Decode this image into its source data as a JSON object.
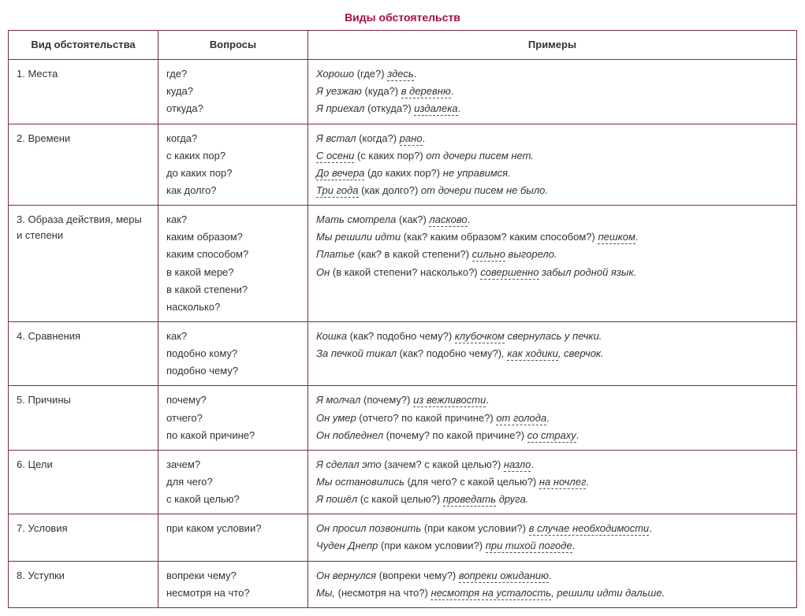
{
  "title": "Виды обстоятельств",
  "colors": {
    "border": "#7a2a44",
    "title": "#a6123a",
    "text": "#333"
  },
  "columns": [
    "Вид обстоятельства",
    "Вопросы",
    "Примеры"
  ],
  "col_widths_pct": [
    19,
    19,
    62
  ],
  "rows": [
    {
      "type": "1. Места",
      "questions": [
        "где?",
        "куда?",
        "откуда?"
      ],
      "examples": [
        [
          {
            "t": "Хорошо ",
            "i": true
          },
          {
            "t": "(где?) ",
            "i": false
          },
          {
            "t": "здесь",
            "i": true,
            "u": true
          },
          {
            "t": ".",
            "i": false
          }
        ],
        [
          {
            "t": "Я уезжаю ",
            "i": true
          },
          {
            "t": "(куда?) ",
            "i": false
          },
          {
            "t": "в деревню",
            "i": true,
            "u": true
          },
          {
            "t": ".",
            "i": false
          }
        ],
        [
          {
            "t": "Я приехал ",
            "i": true
          },
          {
            "t": "(откуда?) ",
            "i": false
          },
          {
            "t": "издалека",
            "i": true,
            "u": true
          },
          {
            "t": ".",
            "i": false
          }
        ]
      ]
    },
    {
      "type": "2. Времени",
      "questions": [
        "когда?",
        "с каких пор?",
        "до каких пор?",
        "как долго?"
      ],
      "examples": [
        [
          {
            "t": "Я встал ",
            "i": true
          },
          {
            "t": "(когда?) ",
            "i": false
          },
          {
            "t": "рано",
            "i": true,
            "u": true
          },
          {
            "t": ".",
            "i": false
          }
        ],
        [
          {
            "t": "С осени",
            "i": true,
            "u": true
          },
          {
            "t": " (с каких пор?) ",
            "i": false
          },
          {
            "t": "от дочери писем нет.",
            "i": true
          }
        ],
        [
          {
            "t": "До вечера",
            "i": true,
            "u": true
          },
          {
            "t": " (до каких пор?) ",
            "i": false
          },
          {
            "t": "не управимся.",
            "i": true
          }
        ],
        [
          {
            "t": "Три года",
            "i": true,
            "u": true
          },
          {
            "t": " (как долго?) ",
            "i": false
          },
          {
            "t": "от дочери писем не было.",
            "i": true
          }
        ]
      ]
    },
    {
      "type": "3. Образа действия, меры и степени",
      "questions": [
        "как?",
        "каким образом?",
        "каким способом?",
        "в какой мере?",
        "в какой степени?",
        "насколько?"
      ],
      "examples": [
        [
          {
            "t": "Мать смотрела ",
            "i": true
          },
          {
            "t": "(как?) ",
            "i": false
          },
          {
            "t": "ласково",
            "i": true,
            "u": true
          },
          {
            "t": ".",
            "i": false
          }
        ],
        [
          {
            "t": "Мы решили идти ",
            "i": true
          },
          {
            "t": "(как? каким образом? каким способом?) ",
            "i": false
          },
          {
            "t": "пешком",
            "i": true,
            "u": true
          },
          {
            "t": ".",
            "i": false
          }
        ],
        [
          {
            "t": "Платье ",
            "i": true
          },
          {
            "t": "(как? в какой степени?) ",
            "i": false
          },
          {
            "t": "сильно",
            "i": true,
            "u": true
          },
          {
            "t": " выгорело.",
            "i": true
          }
        ],
        [
          {
            "t": "Он ",
            "i": true
          },
          {
            "t": "(в какой степени? насколько?) ",
            "i": false
          },
          {
            "t": "совершенно",
            "i": true,
            "u": true
          },
          {
            "t": " забыл родной язык.",
            "i": true
          }
        ]
      ]
    },
    {
      "type": "4. Сравнения",
      "questions": [
        "как?",
        "подобно кому?",
        "подобно чему?"
      ],
      "examples": [
        [
          {
            "t": "Кошка ",
            "i": true
          },
          {
            "t": "(как? подобно чему?) ",
            "i": false
          },
          {
            "t": "клубочком",
            "i": true,
            "u": true
          },
          {
            "t": " свернулась у печки.",
            "i": true
          }
        ],
        [
          {
            "t": "За печкой тикал ",
            "i": true
          },
          {
            "t": "(как? подобно чему?)",
            "i": false
          },
          {
            "t": ", ",
            "i": true
          },
          {
            "t": "как ходики",
            "i": true,
            "u": true
          },
          {
            "t": ", сверчок.",
            "i": true
          }
        ]
      ]
    },
    {
      "type": "5. Причины",
      "questions": [
        "почему?",
        "отчего?",
        "по какой причине?"
      ],
      "examples": [
        [
          {
            "t": "Я молчал ",
            "i": true
          },
          {
            "t": "(почему?) ",
            "i": false
          },
          {
            "t": "из вежливости",
            "i": true,
            "u": true
          },
          {
            "t": ".",
            "i": false
          }
        ],
        [
          {
            "t": "Он умер ",
            "i": true
          },
          {
            "t": "(отчего? по какой причине?) ",
            "i": false
          },
          {
            "t": "от голода",
            "i": true,
            "u": true
          },
          {
            "t": ".",
            "i": false
          }
        ],
        [
          {
            "t": "Он побледнел ",
            "i": true
          },
          {
            "t": "(почему? по какой причине?) ",
            "i": false
          },
          {
            "t": "со страху",
            "i": true,
            "u": true
          },
          {
            "t": ".",
            "i": false
          }
        ]
      ]
    },
    {
      "type": "6. Цели",
      "questions": [
        "зачем?",
        "для чего?",
        "с какой целью?"
      ],
      "examples": [
        [
          {
            "t": "Я сделал это ",
            "i": true
          },
          {
            "t": "(зачем? с какой целью?) ",
            "i": false
          },
          {
            "t": "назло",
            "i": true,
            "u": true
          },
          {
            "t": ".",
            "i": false
          }
        ],
        [
          {
            "t": "Мы остановились ",
            "i": true
          },
          {
            "t": "(для чего? с какой целью?) ",
            "i": false
          },
          {
            "t": "на ночлег",
            "i": true,
            "u": true
          },
          {
            "t": ".",
            "i": false
          }
        ],
        [
          {
            "t": "Я пошёл ",
            "i": true
          },
          {
            "t": "(с какой целью?) ",
            "i": false
          },
          {
            "t": "проведать",
            "i": true,
            "u": true
          },
          {
            "t": " друга.",
            "i": true
          }
        ]
      ]
    },
    {
      "type": "7. Условия",
      "questions": [
        "при каком условии?"
      ],
      "examples": [
        [
          {
            "t": "Он просил позвонить ",
            "i": true
          },
          {
            "t": "(при каком условии?) ",
            "i": false
          },
          {
            "t": "в случае необходимости",
            "i": true,
            "u": true
          },
          {
            "t": ".",
            "i": false
          }
        ],
        [
          {
            "t": "Чуден Днепр ",
            "i": true
          },
          {
            "t": "(при каком условии?) ",
            "i": false
          },
          {
            "t": "при тихой погоде",
            "i": true,
            "u": true
          },
          {
            "t": ".",
            "i": false
          }
        ]
      ]
    },
    {
      "type": "8. Уступки",
      "questions": [
        "вопреки чему?",
        "несмотря на что?"
      ],
      "examples": [
        [
          {
            "t": "Он вернулся ",
            "i": true
          },
          {
            "t": "(вопреки чему?) ",
            "i": false
          },
          {
            "t": "вопреки ожиданию",
            "i": true,
            "u": true
          },
          {
            "t": ".",
            "i": false
          }
        ],
        [
          {
            "t": "Мы, ",
            "i": true
          },
          {
            "t": "(несмотря на что?) ",
            "i": false
          },
          {
            "t": "несмотря на усталость",
            "i": true,
            "u": true
          },
          {
            "t": ", решили идти дальше.",
            "i": true
          }
        ]
      ]
    }
  ]
}
